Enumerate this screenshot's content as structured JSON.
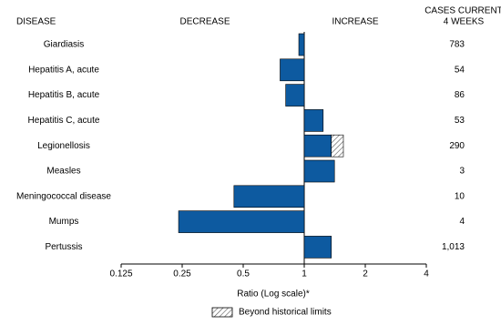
{
  "chart_data": {
    "type": "bar",
    "orientation": "horizontal",
    "log_scale": true,
    "headers": {
      "disease": "DISEASE",
      "decrease": "DECREASE",
      "increase": "INCREASE",
      "cases": [
        "CASES CURRENT",
        "4 WEEKS"
      ]
    },
    "categories": [
      "Giardiasis",
      "Hepatitis A, acute",
      "Hepatitis B, acute",
      "Hepatitis C, acute",
      "Legionellosis",
      "Measles",
      "Meningococcal disease",
      "Mumps",
      "Pertussis"
    ],
    "values": [
      0.94,
      0.76,
      0.81,
      1.24,
      1.36,
      1.41,
      0.45,
      0.24,
      1.36
    ],
    "beyond_limits": [
      null,
      null,
      null,
      null,
      1.56,
      null,
      null,
      null,
      null
    ],
    "cases": [
      "783",
      "54",
      "86",
      "53",
      "290",
      "3",
      "10",
      "4",
      "1,013"
    ],
    "color": "#0d5aa0",
    "xlim": [
      0.125,
      4
    ],
    "xticks": [
      0.125,
      0.25,
      0.5,
      1,
      2,
      4
    ],
    "xlabel": "Ratio (Log scale)*",
    "legend": "Beyond historical limits"
  }
}
